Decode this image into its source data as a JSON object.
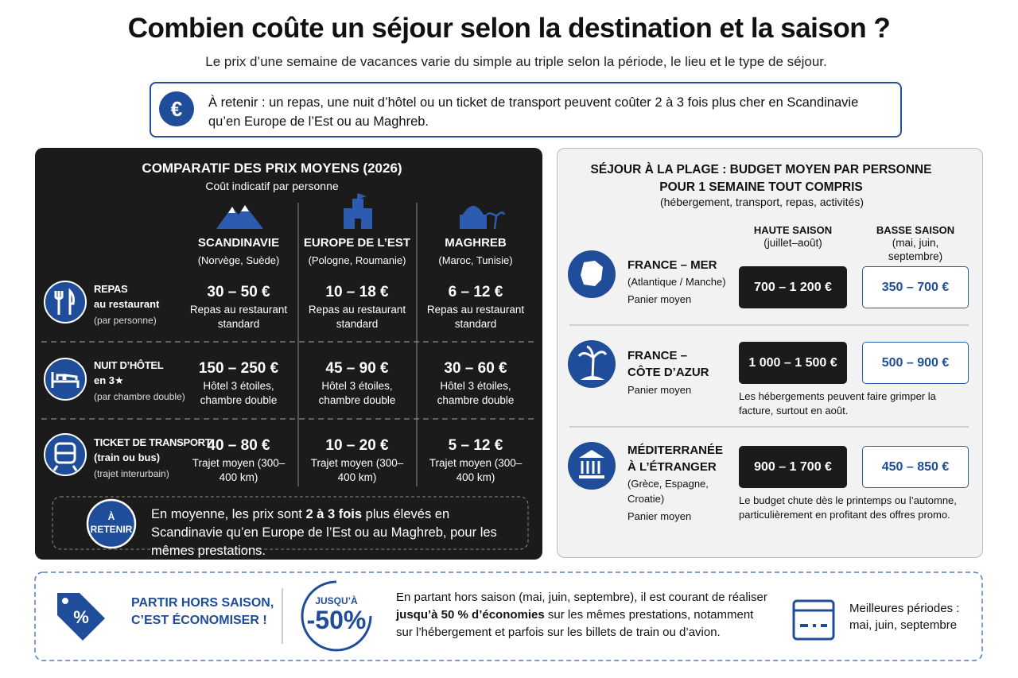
{
  "header": {
    "title": "Combien coûte un séjour selon la destination et la saison ?",
    "subtitle": "Le prix d’une semaine de vacances varie du simple au triple selon la période, le lieu et le type de séjour."
  },
  "callout": {
    "icon": "€",
    "text": "À retenir : un repas, une nuit d’hôtel ou un ticket de transport peuvent coûter 2 à 3 fois plus cher en Scandinavie qu’en Europe de l’Est ou au Maghreb."
  },
  "comparison": {
    "title": "COMPARATIF DES PRIX MOYENS (2026)",
    "subtitle": "Coût indicatif par personne",
    "columns": [
      {
        "name": "SCANDINAVIE",
        "detail": "(Norvège, Suède)"
      },
      {
        "name": "EUROPE DE L’EST",
        "detail": "(Pologne, Roumanie)"
      },
      {
        "name": "MAGHREB",
        "detail": "(Maroc, Tunisie)"
      }
    ],
    "rows": [
      {
        "label": "REPAS",
        "label2": "au restaurant",
        "note": "(par personne)",
        "cells": [
          {
            "price": "30 – 50 €",
            "desc": "Repas au restaurant standard"
          },
          {
            "price": "10 – 18 €",
            "desc": "Repas au restaurant standard"
          },
          {
            "price": "6 – 12 €",
            "desc": "Repas au restaurant standard"
          }
        ]
      },
      {
        "label": "NUIT D’HÔTEL",
        "label2": "en 3★",
        "note": "(par chambre double)",
        "cells": [
          {
            "price": "150 – 250 €",
            "desc": "Hôtel 3 étoiles, chambre double"
          },
          {
            "price": "45 – 90 €",
            "desc": "Hôtel 3 étoiles, chambre double"
          },
          {
            "price": "30 – 60 €",
            "desc": "Hôtel 3 étoiles, chambre double"
          }
        ]
      },
      {
        "label": "TICKET DE TRANSPORT",
        "label2": "(train ou bus)",
        "note": "(trajet interurbain)",
        "cells": [
          {
            "price": "40 – 80 €",
            "desc": "Trajet moyen (300–400 km)"
          },
          {
            "price": "10 – 20 €",
            "desc": "Trajet moyen (300–400 km)"
          },
          {
            "price": "5 – 12 €",
            "desc": "Trajet moyen (300–400 km)"
          }
        ]
      }
    ],
    "summary": {
      "badge": "À RETENIR",
      "before": "En moyenne, les prix sont ",
      "bold": "2 à 3 fois",
      "after": " plus élevés en Scandinavie qu’en Europe de l’Est ou au Maghreb, pour les mêmes prestations."
    }
  },
  "beach": {
    "title": "SÉJOUR À LA PLAGE : BUDGET MOYEN PAR PERSONNE POUR 1 SEMAINE TOUT COMPRIS",
    "subtitle": "(hébergement, transport, repas, activités)",
    "columns": [
      {
        "name": "HAUTE SAISON",
        "detail": "(juillet–août)"
      },
      {
        "name": "BASSE SAISON",
        "detail": "(mai, juin, septembre)"
      }
    ],
    "rows": [
      {
        "name": "FRANCE – MER",
        "detail": "(Atlantique / Manche)",
        "note": "Panier moyen",
        "high": "700 – 1 200 €",
        "low": "350 – 700 €"
      },
      {
        "name": "FRANCE – CÔTE D’AZUR",
        "note": "Panier moyen",
        "high": "1 000 – 1 500 €",
        "low": "500 – 900 €",
        "comment": "Les hébergements peuvent faire grimper la facture, surtout en août."
      },
      {
        "name": "MÉDITERRANÉE À L’ÉTRANGER",
        "detail": "(Grèce, Espagne, Croatie)",
        "note": "Panier moyen",
        "high": "900 – 1 700 €",
        "low": "450 – 850 €",
        "comment": "Le budget chute dès le printemps ou l’automne, particulièrement en profitant des offres promo."
      }
    ]
  },
  "tip": {
    "title": "PARTIR HORS SAISON, C’EST ÉCONOMISER !",
    "badge_top": "JUSQU’À",
    "badge_value": "-50%",
    "before": "En partant hors saison (mai, juin, septembre), il est courant de réaliser ",
    "bold": "jusqu’à 50 % d’économies",
    "after": " sur les mêmes prestations, notamment sur l’hébergement et parfois sur les billets de train ou d’avion.",
    "best": "Meilleures périodes : mai, juin, septembre"
  }
}
